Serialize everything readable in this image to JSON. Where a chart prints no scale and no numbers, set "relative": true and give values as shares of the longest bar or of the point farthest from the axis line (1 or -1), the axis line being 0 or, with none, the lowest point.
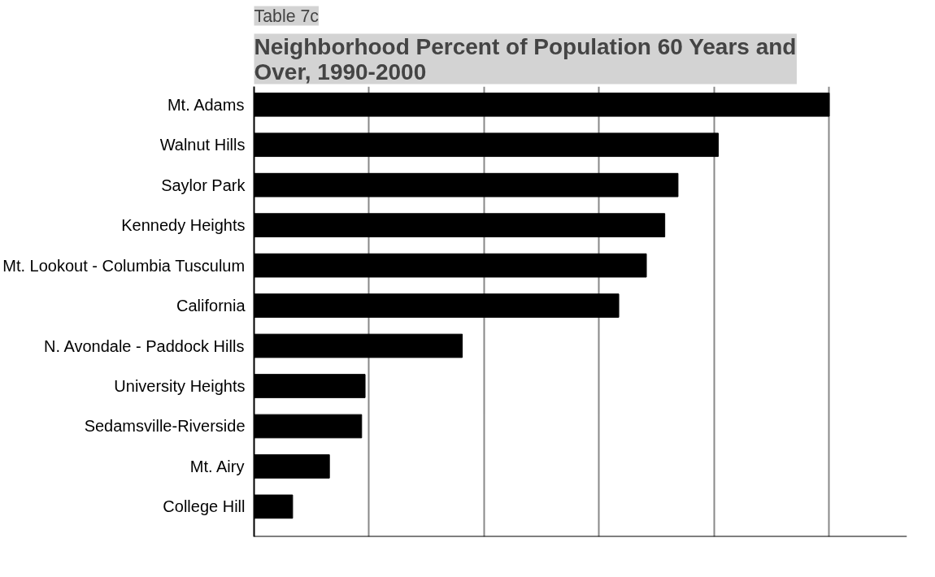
{
  "chart_data": {
    "type": "bar",
    "orientation": "horizontal",
    "relative": true,
    "subtitle": "Table 7c",
    "title": "Neighborhood Percent of Population 60 Years and Over, 1990-2000",
    "categories": [
      "Mt. Adams",
      "Walnut Hills",
      "Saylor Park",
      "Kennedy Heights",
      "Mt. Lookout - Columbia Tusculum",
      "California",
      "N. Avondale - Paddock Hills",
      "University Heights",
      "Sedamsville-Riverside",
      "Mt. Airy",
      "College Hill"
    ],
    "values": [
      1,
      0.807,
      0.737,
      0.714,
      0.682,
      0.634,
      0.362,
      0.193,
      0.187,
      0.131,
      0.067
    ],
    "color": "#000000",
    "grid": "x"
  }
}
